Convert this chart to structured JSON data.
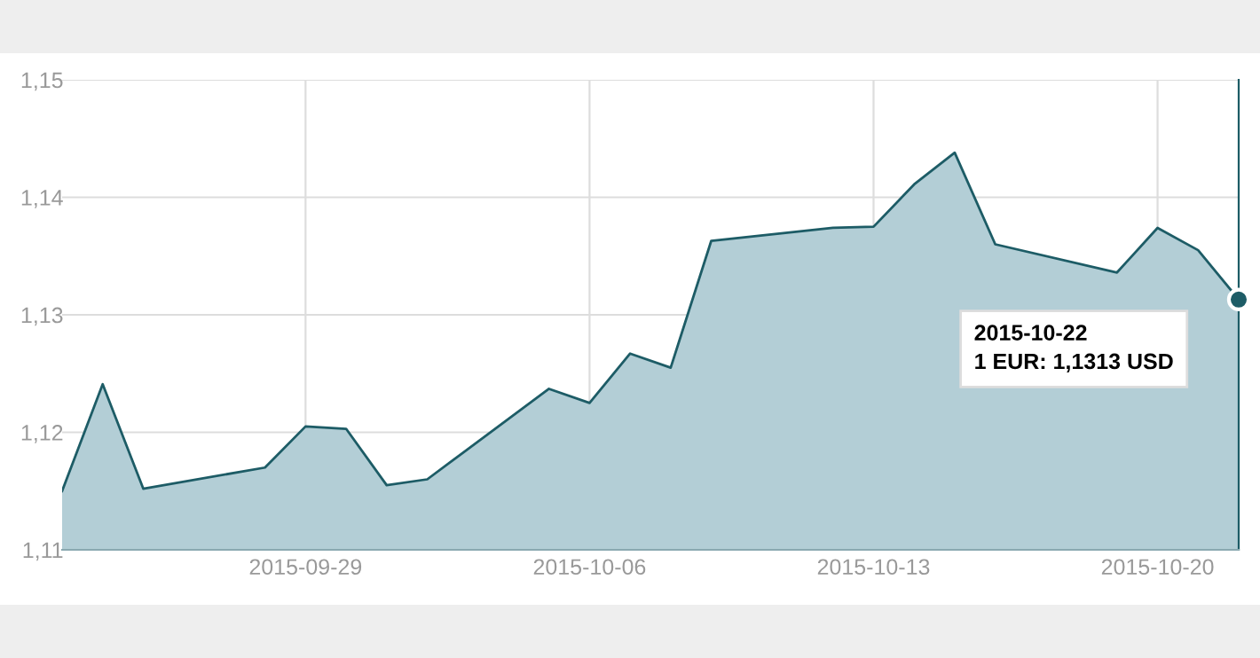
{
  "chart_data": {
    "type": "area",
    "x": [
      "2015-09-23",
      "2015-09-24",
      "2015-09-25",
      "2015-09-28",
      "2015-09-29",
      "2015-09-30",
      "2015-10-01",
      "2015-10-02",
      "2015-10-05",
      "2015-10-06",
      "2015-10-07",
      "2015-10-08",
      "2015-10-09",
      "2015-10-12",
      "2015-10-13",
      "2015-10-14",
      "2015-10-15",
      "2015-10-16",
      "2015-10-19",
      "2015-10-20",
      "2015-10-21",
      "2015-10-22"
    ],
    "series": [
      {
        "color": "#1d5c66",
        "values": [
          1.115,
          1.1241,
          1.1152,
          1.117,
          1.1205,
          1.1203,
          1.1155,
          1.116,
          1.1237,
          1.1225,
          1.1267,
          1.1255,
          1.1363,
          1.1374,
          1.1375,
          1.1411,
          1.1438,
          1.136,
          1.1336,
          1.1374,
          1.1355,
          1.1313
        ]
      }
    ],
    "xlim": [
      "2015-09-23",
      "2015-10-22"
    ],
    "xticks": [
      "2015-09-29",
      "2015-10-06",
      "2015-10-13",
      "2015-10-20"
    ],
    "ylim": [
      1.11,
      1.15
    ],
    "yticks": [
      {
        "value": 1.11,
        "label": "1,11"
      },
      {
        "value": 1.12,
        "label": "1,12"
      },
      {
        "value": 1.13,
        "label": "1,13"
      },
      {
        "value": 1.14,
        "label": "1,14"
      },
      {
        "value": 1.15,
        "label": "1,15"
      }
    ],
    "grid": true,
    "annotations": [
      "2015-10-22\n1 EUR: 1,1313 USD"
    ]
  }
}
